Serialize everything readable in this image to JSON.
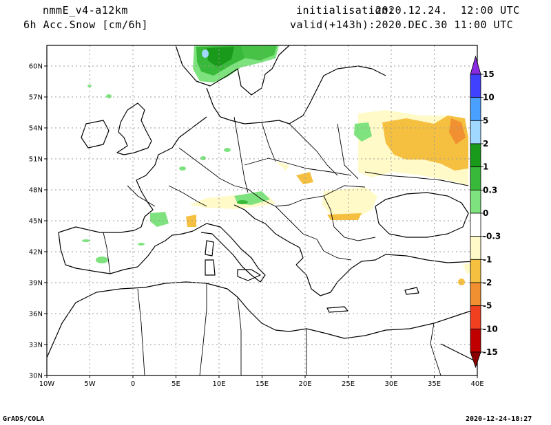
{
  "header": {
    "model": "nmmE_v4-a12km",
    "field": "6h Acc.Snow [cm/6h]",
    "init_label": "initialisation:",
    "init_value": "2020.12.24.  12:00 UTC",
    "valid_label": "valid(+143h):",
    "valid_value": "2020.DEC.30 11:00 UTC"
  },
  "map": {
    "lat_labels": [
      "60N",
      "57N",
      "54N",
      "51N",
      "48N",
      "45N",
      "42N",
      "39N",
      "36N",
      "33N",
      "30N"
    ],
    "lon_labels": [
      "10W",
      "5W",
      "0",
      "5E",
      "10E",
      "15E",
      "20E",
      "25E",
      "30E",
      "35E",
      "40E"
    ],
    "grid": true
  },
  "legend": {
    "items": [
      {
        "label": "15",
        "color": "#8a2be2"
      },
      {
        "label": "10",
        "color": "#4040ff"
      },
      {
        "label": "5",
        "color": "#4aa0ff"
      },
      {
        "label": "2",
        "color": "#a0d8ff"
      },
      {
        "label": "1",
        "color": "#1a9a1a"
      },
      {
        "label": "0.3",
        "color": "#39b939"
      },
      {
        "label": "0",
        "color": "#7ee37e"
      },
      {
        "label": "-0.3",
        "color": "#ffffff"
      },
      {
        "label": "-1",
        "color": "#fffac8"
      },
      {
        "label": "-2",
        "color": "#f5c040"
      },
      {
        "label": "-5",
        "color": "#f09030"
      },
      {
        "label": "-10",
        "color": "#f04020"
      },
      {
        "label": "-15",
        "color": "#c00000"
      }
    ]
  },
  "footer": {
    "left": "GrADS/COLA",
    "right": "2020-12-24-18:27"
  }
}
